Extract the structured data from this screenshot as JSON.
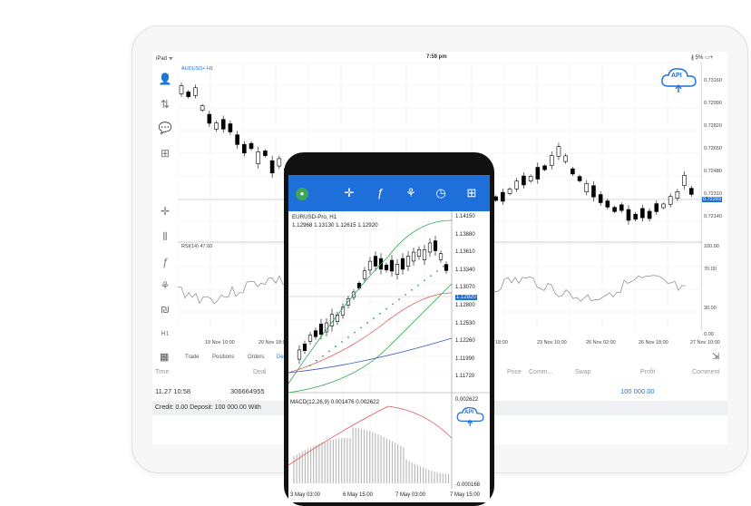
{
  "tablet": {
    "status": {
      "device": "iPad ᯤ",
      "time": "7:59 pm",
      "battery": "∦ 5% ▭+"
    },
    "symbol": "AUDUSD+ H1",
    "price_axis": [
      "0.73160",
      "0.72990",
      "0.72820",
      "0.72650",
      "0.72480",
      "0.72310",
      "0.72140"
    ],
    "current_price": "0.72293",
    "rsi_label": "RSI(14) 47.60",
    "rsi_axis": [
      "100.00",
      "70.00",
      "30.00",
      "0.00"
    ],
    "time_axis": [
      "19 Nov 10:00",
      "20 Nov 18:00",
      "18:00",
      "23 Nov 10:00",
      "26 Nov 02:00",
      "26 Nov 18:00",
      "27 Nov 10:00"
    ],
    "timeframe": "H1",
    "tabs": [
      "Trade",
      "Positions",
      "Orders",
      "Deals"
    ],
    "columns": [
      "Time",
      "Deal",
      "Price",
      "Comm...",
      "Swap",
      "Profit",
      "Comment"
    ],
    "row": {
      "time": "11.27 10:58",
      "deal": "306664955",
      "profit": "100 000.00"
    },
    "credit": "Credit: 0.00 Deposit: 100 000.00 With",
    "api_label": "API"
  },
  "phone": {
    "symbol": "EURUSD-Pro, H1",
    "ohlc": "1.12968 1.13130 1.12615 1.12920",
    "price_axis": [
      "1.14150",
      "1.13880",
      "1.13610",
      "1.13340",
      "1.13070",
      "1.12800",
      "1.12530",
      "1.12260",
      "1.11990",
      "1.11720"
    ],
    "current_price": "1.12920",
    "macd_label": "MACD(12,26,9) 0.001476 0.002622",
    "macd_axis_top": "0.002622",
    "macd_axis_bottom": "-0.000168",
    "time_axis": [
      "3 May 03:00",
      "6 May 15:00",
      "7 May 03:00",
      "7 May 15:00"
    ],
    "api_label": "API"
  },
  "colors": {
    "accent": "#1e6fd9",
    "bull": "#ffffff",
    "bear": "#000000"
  }
}
